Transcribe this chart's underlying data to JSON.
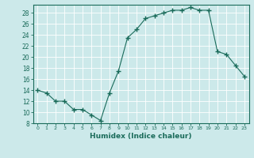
{
  "x": [
    0,
    1,
    2,
    3,
    4,
    5,
    6,
    7,
    8,
    9,
    10,
    11,
    12,
    13,
    14,
    15,
    16,
    17,
    18,
    19,
    20,
    21,
    22,
    23
  ],
  "y": [
    14,
    13.5,
    12,
    12,
    10.5,
    10.5,
    9.5,
    8.5,
    13.5,
    17.5,
    23.5,
    25,
    27,
    27.5,
    28,
    28.5,
    28.5,
    29,
    28.5,
    28.5,
    21,
    20.5,
    18.5,
    16.5
  ],
  "xlim": [
    -0.5,
    23.5
  ],
  "ylim": [
    8,
    29.5
  ],
  "yticks": [
    8,
    10,
    12,
    14,
    16,
    18,
    20,
    22,
    24,
    26,
    28
  ],
  "xticks": [
    0,
    1,
    2,
    3,
    4,
    5,
    6,
    7,
    8,
    9,
    10,
    11,
    12,
    13,
    14,
    15,
    16,
    17,
    18,
    19,
    20,
    21,
    22,
    23
  ],
  "xlabel": "Humidex (Indice chaleur)",
  "line_color": "#1a6b5a",
  "marker": "+",
  "marker_size": 4,
  "bg_color": "#cce9ea",
  "grid_color": "#b0d8da",
  "grid_color2": "#ffffff",
  "tick_color": "#1a6b5a",
  "label_color": "#1a6b5a"
}
